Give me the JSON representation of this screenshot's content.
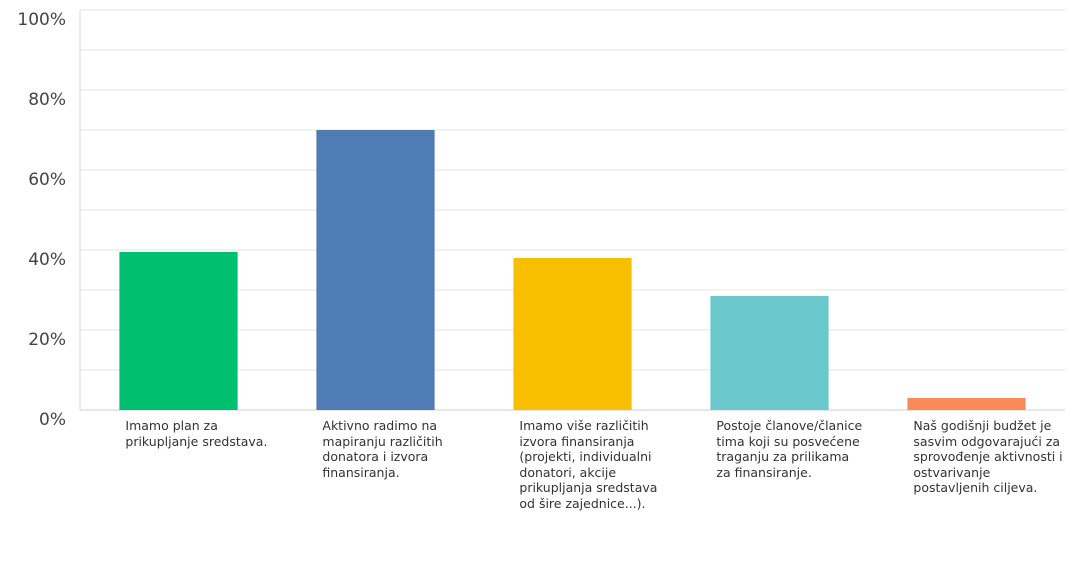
{
  "chart_data": {
    "type": "bar",
    "categories": [
      "Imamo plan za prikupljanje sredstava.",
      "Aktivno radimo na mapiranju različitih donatora i izvora finansiranja.",
      "Imamo više različitih izvora finansiranja (projekti, individualni donatori, akcije prikupljanja sredstava od šire zajednice...).",
      "Postoje članove/članice tima koji su posvećene traganju za prilikama za finansiranje.",
      "Naš godišnji budžet je sasvim odgovarajući za sprovođenje aktivnosti i ostvarivanje postavljenih ciljeva."
    ],
    "values": [
      39.5,
      70,
      38,
      28.5,
      3
    ],
    "colors": [
      "#00bf6f",
      "#507cb6",
      "#f8be00",
      "#6bc8cd",
      "#f98b5b"
    ],
    "ylim": [
      0,
      100
    ],
    "yticks": [
      {
        "value": 0,
        "label": "0%"
      },
      {
        "value": 20,
        "label": "20%"
      },
      {
        "value": 40,
        "label": "40%"
      },
      {
        "value": 60,
        "label": "60%"
      },
      {
        "value": 80,
        "label": "80%"
      },
      {
        "value": 100,
        "label": "100%"
      }
    ],
    "minor_yticks": [
      10,
      30,
      50,
      70,
      90
    ],
    "grid": true
  }
}
